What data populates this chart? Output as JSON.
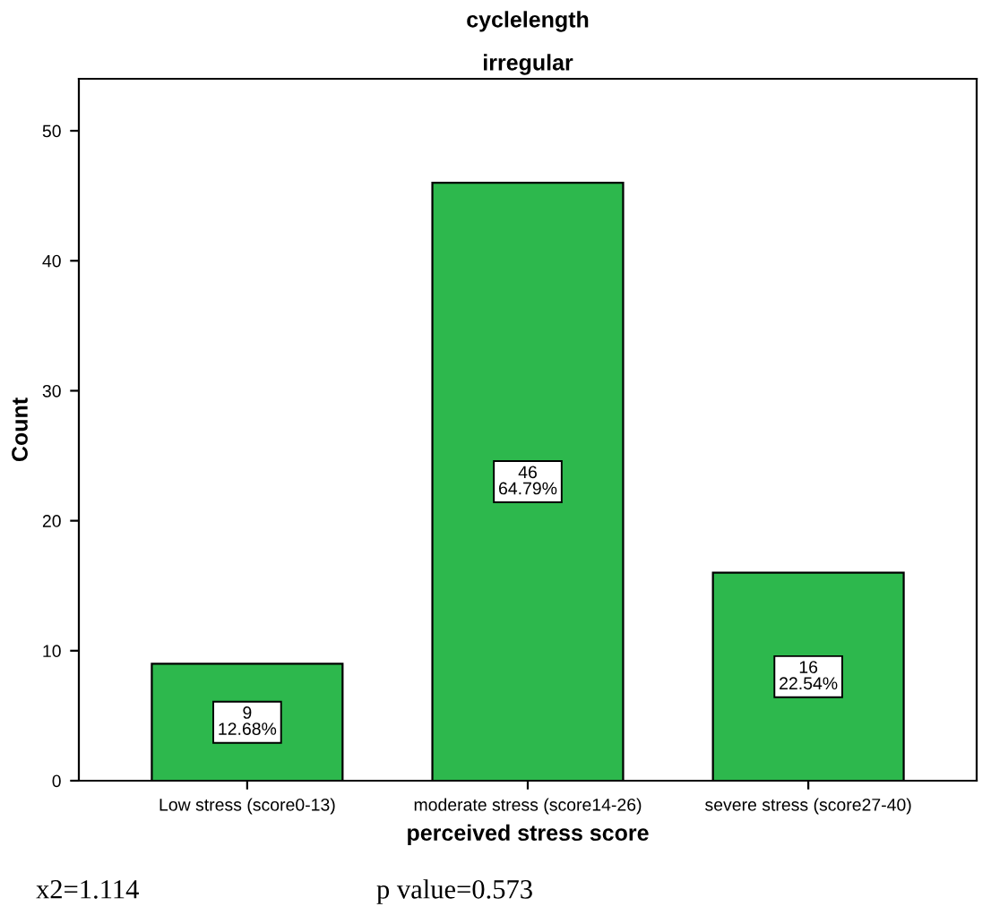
{
  "chart_data": {
    "type": "bar",
    "title": "cyclelength",
    "subtitle": "irregular",
    "xlabel": "perceived stress score",
    "ylabel": "Count",
    "categories": [
      "Low stress (score0-13)",
      "moderate stress (score14-26)",
      "severe stress (score27-40)"
    ],
    "values": [
      9,
      46,
      16
    ],
    "color": "#2db84d",
    "value_labels": [
      "9\n12.68%",
      "46\n64.79%",
      "16\n22.54%"
    ],
    "ylim": [
      0,
      54
    ],
    "yticks": [
      0,
      10,
      20,
      30,
      40,
      50
    ],
    "grid": false,
    "legend": false,
    "annotations": [
      "x2=1.114",
      "p value=0.573"
    ]
  }
}
